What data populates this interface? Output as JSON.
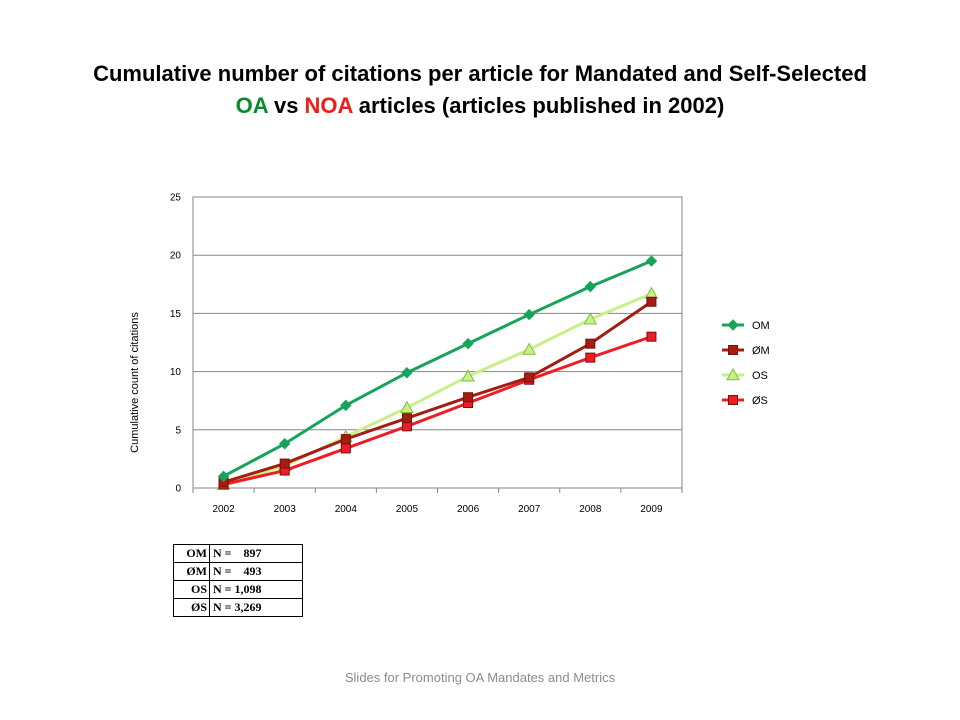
{
  "slide": {
    "title_part1": "Cumulative number of citations per article for Mandated and Self-Selected",
    "title_oa": "OA",
    "title_vs": " vs ",
    "title_noa": "NOA",
    "title_part2": " articles (articles published in 2002)",
    "footer": "Slides for Promoting OA Mandates and Metrics"
  },
  "colors": {
    "title_oa": "#0a8a2a",
    "title_noa": "#e8201a"
  },
  "chart_data": {
    "type": "line",
    "title": "",
    "xlabel": "",
    "ylabel": "Cumulative count of citations",
    "x": [
      "2002",
      "2003",
      "2004",
      "2005",
      "2006",
      "2007",
      "2008",
      "2009"
    ],
    "ylim": [
      0,
      25
    ],
    "yticks": [
      0,
      5,
      10,
      15,
      20,
      25
    ],
    "grid": "horizontal",
    "legend_position": "right",
    "series": [
      {
        "name": "OM",
        "values": [
          1.0,
          3.8,
          7.1,
          9.9,
          12.4,
          14.9,
          17.3,
          19.5
        ],
        "color": "#17a35a",
        "marker": "diamond"
      },
      {
        "name": "ØM",
        "values": [
          0.5,
          2.1,
          4.2,
          6.0,
          7.8,
          9.5,
          12.4,
          16.0
        ],
        "color": "#a51c10",
        "marker": "square"
      },
      {
        "name": "OS",
        "values": [
          0.3,
          1.9,
          4.4,
          6.9,
          9.6,
          11.9,
          14.5,
          16.7
        ],
        "color": "#c8f088",
        "marker": "triangle"
      },
      {
        "name": "ØS",
        "values": [
          0.3,
          1.5,
          3.4,
          5.3,
          7.3,
          9.3,
          11.2,
          13.0
        ],
        "color": "#ee1c24",
        "marker": "square"
      }
    ]
  },
  "counts_table": {
    "rows": [
      {
        "group": "OM",
        "n": "N =    897"
      },
      {
        "group": "ØM",
        "n": "N =    493"
      },
      {
        "group": "OS",
        "n": "N = 1,098"
      },
      {
        "group": "ØS",
        "n": "N = 3,269"
      }
    ]
  }
}
